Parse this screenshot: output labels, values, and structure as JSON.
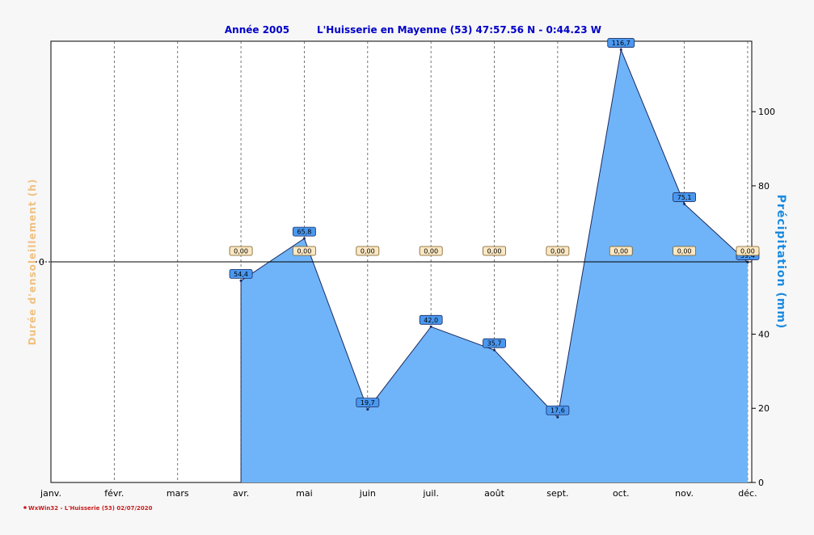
{
  "header": {
    "year_label": "Année  2005",
    "station_label": "L'Huisserie en Mayenne (53) 47:57.56 N - 0:44.23 W"
  },
  "footer": {
    "credit": "WxWin32 - L'Huisserie (53)  02/07/2020"
  },
  "chart_data": {
    "type": "area",
    "title": "Année  2005",
    "subtitle": "L'Huisserie en Mayenne (53) 47:57.56 N - 0:44.23 W",
    "categories": [
      "janv.",
      "févr.",
      "mars",
      "avr.",
      "mai",
      "juin",
      "juil.",
      "août",
      "sept.",
      "oct.",
      "nov.",
      "déc."
    ],
    "y_left": {
      "label": "Durée d'ensoleillement  (h)",
      "ticks": [
        "0"
      ],
      "label_color": "#f0c080"
    },
    "y_right": {
      "label": "Précipitation  (mm)",
      "ticks": [
        "0",
        "20",
        "40",
        "80",
        "100"
      ],
      "range": [
        0,
        119
      ],
      "label_color": "#1a8ae0"
    },
    "grid": "vertical dashed",
    "series": [
      {
        "name": "Précipitation  (mm)",
        "axis": "right",
        "color": "#6fb4f8",
        "values": [
          null,
          null,
          null,
          54.4,
          65.8,
          19.7,
          42.0,
          35.7,
          17.6,
          116.7,
          75.1,
          59.4
        ],
        "labels": [
          "",
          "",
          "",
          "54,4",
          "65,8",
          "19,7",
          "42,0",
          "35,7",
          "17,6",
          "116,7",
          "75,1",
          "59,4"
        ]
      },
      {
        "name": "Durée d'ensoleillement  (h)",
        "axis": "left",
        "color": "#fbe8c4",
        "values": [
          null,
          null,
          null,
          0,
          0,
          0,
          0,
          0,
          0,
          0,
          0,
          0
        ],
        "labels": [
          "",
          "",
          "",
          "0,00",
          "0,00",
          "0,00",
          "0,00",
          "0,00",
          "0,00",
          "0,00",
          "0,00",
          "0,00"
        ]
      }
    ]
  }
}
